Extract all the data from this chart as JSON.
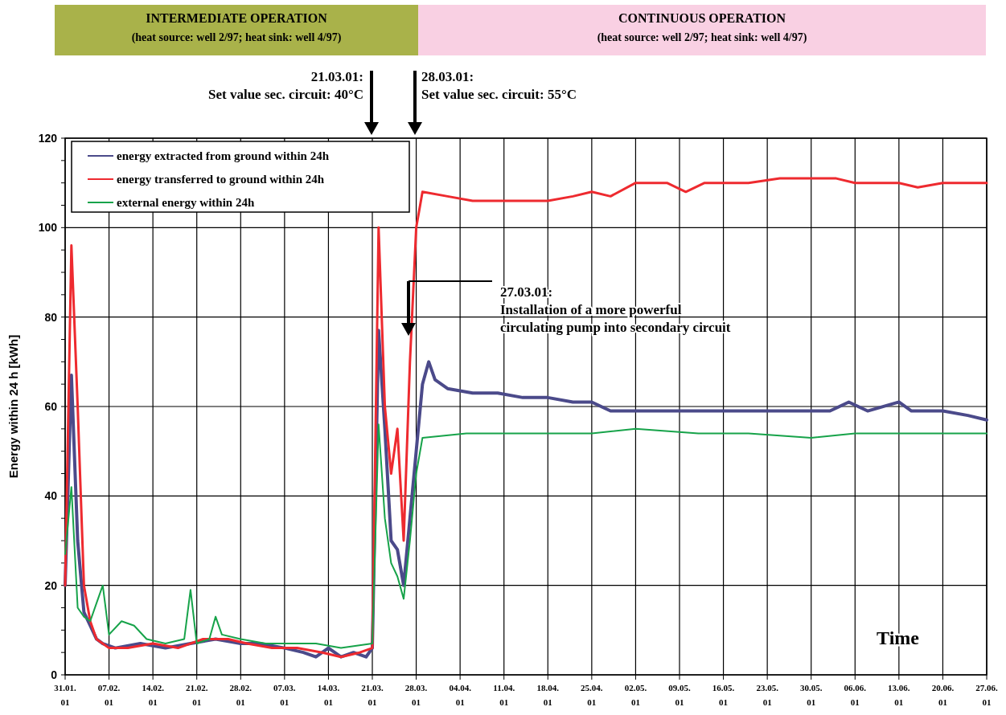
{
  "chart_data": {
    "type": "line",
    "ylabel": "Energy within 24 h [kWh]",
    "xlabel": "Time",
    "xlim": [
      "--01-31",
      "--06-27"
    ],
    "xticks": [
      {
        "value": "--01-31",
        "label": "31.01.\n01"
      },
      {
        "value": "--02-07",
        "label": "07.02.\n01"
      },
      {
        "value": "--02-14",
        "label": "14.02.\n01"
      },
      {
        "value": "--02-21",
        "label": "21.02.\n01"
      },
      {
        "value": "--02-28",
        "label": "28.02.\n01"
      },
      {
        "value": "--03-07",
        "label": "07.03.\n01"
      },
      {
        "value": "--03-14",
        "label": "14.03.\n01"
      },
      {
        "value": "--03-21",
        "label": "21.03.\n01"
      },
      {
        "value": "--03-28",
        "label": "28.03.\n01"
      },
      {
        "value": "--04-04",
        "label": "04.04.\n01"
      },
      {
        "value": "--04-11",
        "label": "11.04.\n01"
      },
      {
        "value": "--04-18",
        "label": "18.04.\n01"
      },
      {
        "value": "--04-25",
        "label": "25.04.\n01"
      },
      {
        "value": "--05-02",
        "label": "02.05.\n01"
      },
      {
        "value": "--05-09",
        "label": "09.05.\n01"
      },
      {
        "value": "--05-16",
        "label": "16.05.\n01"
      },
      {
        "value": "--05-23",
        "label": "23.05.\n01"
      },
      {
        "value": "--05-30",
        "label": "30.05.\n01"
      },
      {
        "value": "--06-06",
        "label": "06.06.\n01"
      },
      {
        "value": "--06-13",
        "label": "13.06.\n01"
      },
      {
        "value": "--06-20",
        "label": "20.06.\n01"
      },
      {
        "value": "--06-27",
        "label": "27.06.\n01"
      }
    ],
    "ylim": [
      0,
      120
    ],
    "yticks": [
      0,
      {
        "value": 5,
        "label": null
      },
      {
        "value": 10,
        "label": null
      },
      {
        "value": 15,
        "label": null
      },
      20,
      {
        "value": 25,
        "label": null
      },
      {
        "value": 30,
        "label": null
      },
      {
        "value": 35,
        "label": null
      },
      40,
      {
        "value": 45,
        "label": null
      },
      {
        "value": 50,
        "label": null
      },
      {
        "value": 55,
        "label": null
      },
      60,
      {
        "value": 65,
        "label": null
      },
      {
        "value": 70,
        "label": null
      },
      {
        "value": 75,
        "label": null
      },
      80,
      {
        "value": 85,
        "label": null
      },
      {
        "value": 90,
        "label": null
      },
      {
        "value": 95,
        "label": null
      },
      100,
      {
        "value": 105,
        "label": null
      },
      {
        "value": 110,
        "label": null
      },
      {
        "value": 115,
        "label": null
      },
      120
    ],
    "grid": true,
    "legend": "top left",
    "series": [
      {
        "name": "energy extracted from ground within 24h",
        "color": "#4b4a8a",
        "x": [
          "--01-31",
          "--02-01",
          "--02-02",
          "--02-03",
          "--02-04",
          "--02-05",
          "--02-06",
          "--02-08",
          "--02-12",
          "--02-16",
          "--02-20",
          "--02-24",
          "--02-28",
          "--03-03",
          "--03-07",
          "--03-10",
          "--03-12",
          "--03-14",
          "--03-16",
          "--03-18",
          "--03-20",
          "--03-21",
          "--03-22",
          "--03-23",
          "--03-24",
          "--03-25",
          "--03-26",
          "--03-27",
          "--03-28",
          "--03-29",
          "--03-30",
          "--03-31",
          "--04-02",
          "--04-06",
          "--04-10",
          "--04-14",
          "--04-18",
          "--04-22",
          "--04-25",
          "--04-28",
          "--05-05",
          "--05-15",
          "--05-25",
          "--06-02",
          "--06-05",
          "--06-08",
          "--06-13",
          "--06-15",
          "--06-20",
          "--06-24",
          "--06-27"
        ],
        "values": [
          20,
          67,
          30,
          14,
          11,
          8,
          7,
          6,
          7,
          6,
          7,
          8,
          7,
          7,
          6,
          5,
          4,
          6,
          4,
          5,
          4,
          6,
          77,
          55,
          30,
          28,
          20,
          35,
          50,
          65,
          70,
          66,
          64,
          63,
          63,
          62,
          62,
          61,
          61,
          59,
          59,
          59,
          59,
          59,
          61,
          59,
          61,
          59,
          59,
          58,
          57
        ]
      },
      {
        "name": "energy transferred to ground within 24h",
        "color": "#ee2a2f",
        "x": [
          "--01-31",
          "--02-01",
          "--02-02",
          "--02-03",
          "--02-04",
          "--02-05",
          "--02-07",
          "--02-10",
          "--02-14",
          "--02-18",
          "--02-22",
          "--02-26",
          "--03-01",
          "--03-05",
          "--03-09",
          "--03-13",
          "--03-16",
          "--03-19",
          "--03-21",
          "--03-22",
          "--03-23",
          "--03-24",
          "--03-25",
          "--03-26",
          "--03-27",
          "--03-28",
          "--03-29",
          "--04-02",
          "--04-06",
          "--04-10",
          "--04-14",
          "--04-18",
          "--04-22",
          "--04-25",
          "--04-28",
          "--05-02",
          "--05-07",
          "--05-10",
          "--05-13",
          "--05-20",
          "--05-25",
          "--05-30",
          "--06-03",
          "--06-06",
          "--06-13",
          "--06-16",
          "--06-20",
          "--06-27"
        ],
        "values": [
          20,
          96,
          60,
          20,
          12,
          8,
          6,
          6,
          7,
          6,
          8,
          8,
          7,
          6,
          6,
          5,
          4,
          5,
          6,
          100,
          60,
          45,
          55,
          30,
          70,
          100,
          108,
          107,
          106,
          106,
          106,
          106,
          107,
          108,
          107,
          110,
          110,
          108,
          110,
          110,
          111,
          111,
          111,
          110,
          110,
          109,
          110,
          110
        ]
      },
      {
        "name": "external energy within 24h",
        "color": "#17a34a",
        "x": [
          "--01-31",
          "--02-01",
          "--02-02",
          "--02-03",
          "--02-04",
          "--02-05",
          "--02-06",
          "--02-07",
          "--02-09",
          "--02-11",
          "--02-13",
          "--02-16",
          "--02-19",
          "--02-20",
          "--02-21",
          "--02-23",
          "--02-24",
          "--02-25",
          "--02-28",
          "--03-04",
          "--03-08",
          "--03-12",
          "--03-16",
          "--03-21",
          "--03-22",
          "--03-23",
          "--03-24",
          "--03-25",
          "--03-26",
          "--03-27",
          "--03-28",
          "--03-29",
          "--04-05",
          "--04-15",
          "--04-25",
          "--05-02",
          "--05-12",
          "--05-20",
          "--05-30",
          "--06-06",
          "--06-15",
          "--06-27"
        ],
        "values": [
          27,
          42,
          15,
          13,
          12,
          16,
          20,
          9,
          12,
          11,
          8,
          7,
          8,
          19,
          7,
          8,
          13,
          9,
          8,
          7,
          7,
          7,
          6,
          7,
          56,
          35,
          25,
          22,
          17,
          30,
          45,
          53,
          54,
          54,
          54,
          55,
          54,
          54,
          53,
          54,
          54,
          54
        ]
      }
    ],
    "annotations": [
      "INTERMEDIATE OPERATION\n(heat source: well 2/97; heat sink: well 4/97)",
      "CONTINUOUS OPERATION\n(heat source: well 2/97; heat sink: well 4/97)",
      "21.03.01:\nSet value sec. circuit: 40°C",
      "28.03.01:\nSet value sec. circuit: 55°C",
      "27.03.01:\nInstallation of a more powerful\ncirculating pump into secondary circuit"
    ]
  }
}
